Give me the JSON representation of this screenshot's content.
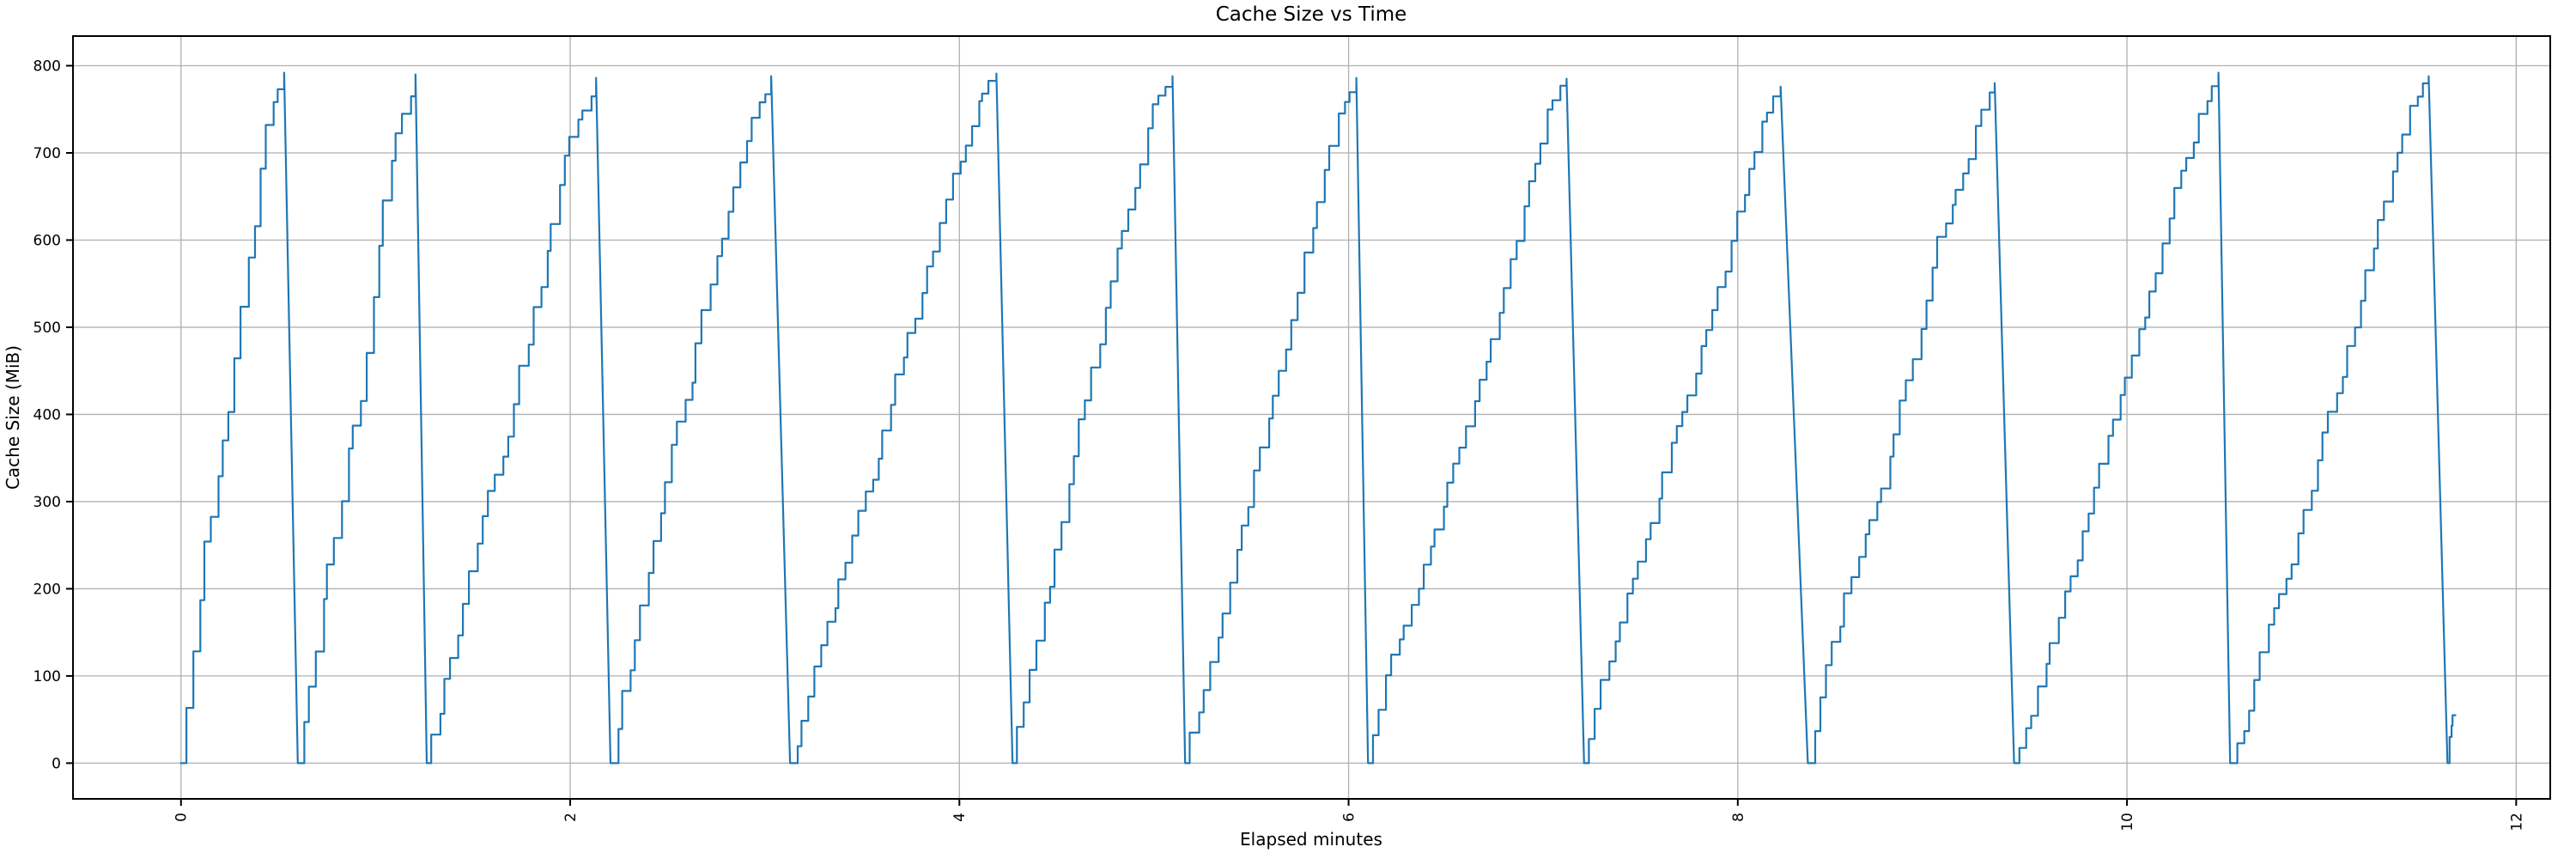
{
  "chart_data": {
    "type": "line",
    "title": "Cache Size vs Time",
    "xlabel": "Elapsed minutes",
    "ylabel": "Cache Size (MiB)",
    "x_ticks": [
      0,
      2,
      4,
      6,
      8,
      10,
      12
    ],
    "y_ticks": [
      0,
      100,
      200,
      300,
      400,
      500,
      600,
      700,
      800
    ],
    "xlim": [
      -0.555,
      12.175
    ],
    "ylim": [
      -41,
      834
    ],
    "grid": true,
    "x_tick_rotation_deg": 90,
    "legend": "none",
    "line_color": "#1f77b4",
    "grid_color": "#b0b0b0",
    "spine_color": "#000000",
    "series_name": "cache size",
    "pattern": "sawtooth: stair-step growth to ~790 MiB then rapid eviction drop to 0",
    "rise_style": {
      "type": "staircase",
      "step_minutes": 0.032
    },
    "teeth": [
      {
        "start": 0.0,
        "peak_time": 0.53,
        "peak": 792,
        "drop_end": 0.6
      },
      {
        "start": 0.6,
        "peak_time": 1.205,
        "peak": 790,
        "drop_end": 1.263
      },
      {
        "start": 1.263,
        "peak_time": 2.133,
        "peak": 786,
        "drop_end": 2.207
      },
      {
        "start": 2.207,
        "peak_time": 3.033,
        "peak": 788,
        "drop_end": 3.13
      },
      {
        "start": 3.13,
        "peak_time": 4.19,
        "peak": 791,
        "drop_end": 4.273
      },
      {
        "start": 4.273,
        "peak_time": 5.095,
        "peak": 788,
        "drop_end": 5.16
      },
      {
        "start": 5.16,
        "peak_time": 6.04,
        "peak": 786,
        "drop_end": 6.1
      },
      {
        "start": 6.1,
        "peak_time": 7.12,
        "peak": 785,
        "drop_end": 7.21
      },
      {
        "start": 7.21,
        "peak_time": 8.22,
        "peak": 776,
        "drop_end": 8.36
      },
      {
        "start": 8.36,
        "peak_time": 9.32,
        "peak": 780,
        "drop_end": 9.42
      },
      {
        "start": 9.42,
        "peak_time": 10.47,
        "peak": 792,
        "drop_end": 10.53
      },
      {
        "start": 10.53,
        "peak_time": 11.55,
        "peak": 788,
        "drop_end": 11.647
      }
    ],
    "final_partial_rise": {
      "points": [
        [
          11.647,
          0
        ],
        [
          11.658,
          0
        ],
        [
          11.658,
          30
        ],
        [
          11.668,
          30
        ],
        [
          11.668,
          43
        ],
        [
          11.673,
          43
        ],
        [
          11.673,
          55
        ],
        [
          11.688,
          55
        ]
      ]
    }
  }
}
